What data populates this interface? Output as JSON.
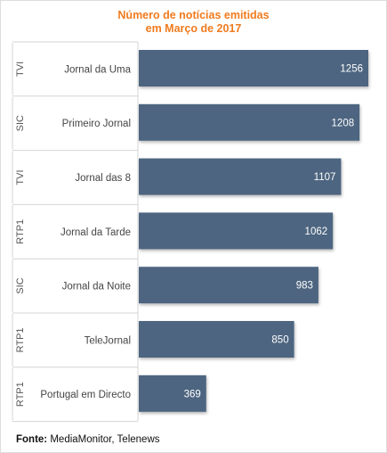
{
  "chart_data": {
    "type": "bar",
    "orientation": "horizontal",
    "title": [
      "Número de notícias emitidas",
      "em Março de 2017"
    ],
    "groups": [
      "TVI",
      "SIC",
      "TVI",
      "RTP1",
      "SIC",
      "RTP1",
      "RTP1"
    ],
    "categories": [
      "Jornal da Uma",
      "Primeiro Jornal",
      "Jornal das 8",
      "Jornal da Tarde",
      "Jornal da Noite",
      "TeleJornal",
      "Portugal em Directo"
    ],
    "values": [
      1256,
      1208,
      1107,
      1062,
      983,
      850,
      369
    ],
    "xlim": [
      0,
      1256
    ],
    "data_labels": true,
    "grid": false,
    "colors": {
      "bar": "#4d6580",
      "title": "#f07b1e"
    }
  },
  "source": {
    "label": "Fonte:",
    "text": "MediaMonitor, Telenews"
  }
}
